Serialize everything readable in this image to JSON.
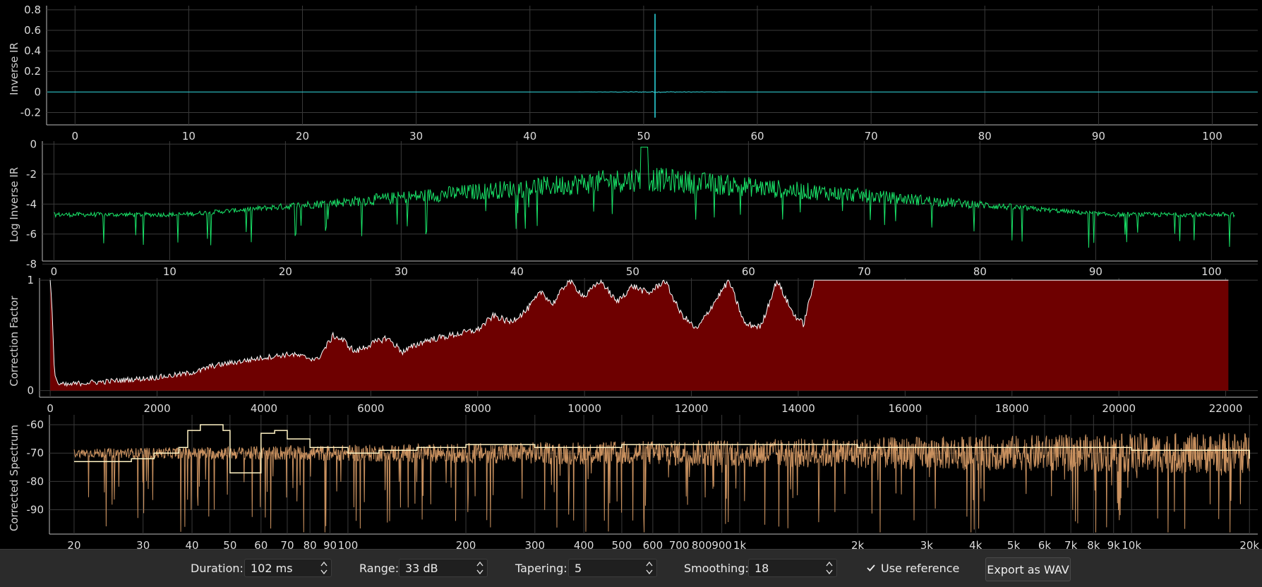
{
  "chart_data": [
    {
      "type": "line",
      "title": "",
      "ylabel": "Inverse IR",
      "xlabel": "",
      "xlim": [
        -2.5,
        104
      ],
      "ylim": [
        -0.32,
        0.84
      ],
      "xticks": [
        0,
        10,
        20,
        30,
        40,
        50,
        60,
        70,
        80,
        90,
        100
      ],
      "yticks": [
        -0.2,
        0,
        0.2,
        0.4,
        0.6,
        0.8
      ],
      "ytick_labels": [
        "-0.2",
        "0",
        "0.2",
        "0.4",
        "0.6",
        "0.8"
      ],
      "series": [
        {
          "name": "inverse-ir",
          "peak_x": 51,
          "peak_value": 0.76,
          "min_value": -0.25,
          "color": "#2ad0d6"
        }
      ],
      "grid": true
    },
    {
      "type": "line",
      "title": "",
      "ylabel": "Log Inverse IR",
      "xlabel": "",
      "xlim": [
        -1,
        104
      ],
      "ylim": [
        -7.8,
        0.2
      ],
      "xticks": [
        0,
        10,
        20,
        30,
        40,
        50,
        60,
        70,
        80,
        90,
        100
      ],
      "yticks": [
        0,
        -2,
        -4,
        -6,
        -8
      ],
      "ytick_labels": [
        "0",
        "-2",
        "-4",
        "-6",
        "-8"
      ],
      "series": [
        {
          "name": "log-inverse-ir",
          "baseline": -4.7,
          "peak_x": 51,
          "peak_value": -0.2,
          "color": "#19e368"
        }
      ],
      "grid": true
    },
    {
      "type": "area",
      "title": "",
      "ylabel": "Correction Factor",
      "xlabel": "",
      "xlim": [
        -200,
        22600
      ],
      "ylim": [
        -0.06,
        1.02
      ],
      "xticks": [
        0,
        2000,
        4000,
        6000,
        8000,
        10000,
        12000,
        14000,
        16000,
        18000,
        20000,
        22000
      ],
      "yticks": [
        0,
        1
      ],
      "ytick_labels": [
        "0",
        "1"
      ],
      "series": [
        {
          "name": "correction-factor",
          "fill": "#6e0000",
          "line": "#ffffff",
          "x": [
            0,
            30,
            80,
            150,
            300,
            600,
            1000,
            1500,
            2000,
            2500,
            2800,
            3000,
            3500,
            4000,
            4500,
            5000,
            5300,
            5500,
            5700,
            6000,
            6300,
            6600,
            7000,
            7500,
            8000,
            8300,
            8600,
            8900,
            9200,
            9400,
            9700,
            10000,
            10300,
            10600,
            10900,
            11200,
            11500,
            11800,
            12100,
            12400,
            12700,
            13000,
            13300,
            13600,
            13900,
            14100,
            14300,
            16000,
            18000,
            20000,
            22000
          ],
          "values": [
            1.0,
            0.8,
            0.15,
            0.06,
            0.05,
            0.07,
            0.08,
            0.1,
            0.12,
            0.15,
            0.18,
            0.22,
            0.26,
            0.3,
            0.33,
            0.28,
            0.5,
            0.45,
            0.35,
            0.42,
            0.48,
            0.35,
            0.45,
            0.5,
            0.55,
            0.68,
            0.62,
            0.72,
            0.9,
            0.78,
            1.0,
            0.85,
            1.0,
            0.8,
            0.95,
            0.88,
            1.0,
            0.7,
            0.55,
            0.78,
            1.0,
            0.6,
            0.58,
            1.0,
            0.7,
            0.6,
            1.0,
            1.0,
            1.0,
            1.0,
            1.0
          ]
        }
      ],
      "grid": true
    },
    {
      "type": "line",
      "title": "",
      "ylabel": "Corrected Spectrum",
      "xlabel": "",
      "xscale": "log",
      "xlim": [
        17.3,
        21000
      ],
      "ylim": [
        -98.6,
        -56.5
      ],
      "xticks": [
        20,
        30,
        40,
        50,
        60,
        70,
        80,
        90,
        100,
        200,
        300,
        400,
        500,
        600,
        700,
        800,
        900,
        1000,
        2000,
        3000,
        4000,
        5000,
        6000,
        7000,
        8000,
        9000,
        10000,
        20000
      ],
      "xtick_labels": [
        "20",
        "30",
        "40",
        "50",
        "60",
        "70",
        "80",
        "90",
        "100",
        "200",
        "300",
        "400",
        "500",
        "600",
        "700",
        "800",
        "900",
        "1k",
        "2k",
        "3k",
        "4k",
        "5k",
        "6k",
        "7k",
        "8k",
        "9k",
        "10k",
        "20k"
      ],
      "yticks": [
        -60,
        -70,
        -80,
        -90
      ],
      "ytick_labels": [
        "-60",
        "-70",
        "-80",
        "-90"
      ],
      "series": [
        {
          "name": "spectrum-raw",
          "color": "#c9915f",
          "baseline": -70
        },
        {
          "name": "spectrum-smoothed",
          "color": "#fff3c4",
          "x": [
            20,
            23,
            28,
            32,
            37,
            39,
            42,
            45,
            48,
            50,
            53,
            57,
            60,
            65,
            70,
            80,
            90,
            100,
            120,
            150,
            200,
            300,
            500,
            1000,
            2000,
            5000,
            10000,
            20000
          ],
          "values": [
            -73,
            -73,
            -72,
            -70,
            -68,
            -62,
            -60,
            -60,
            -62,
            -77,
            -77,
            -77,
            -63,
            -62,
            -65,
            -68,
            -68,
            -70,
            -69,
            -68,
            -67,
            -68,
            -67,
            -67,
            -68,
            -68,
            -69,
            -72
          ]
        }
      ],
      "grid": true
    }
  ],
  "controls": {
    "duration": {
      "label": "Duration:",
      "value": "102 ms"
    },
    "range": {
      "label": "Range:",
      "value": "33 dB"
    },
    "tapering": {
      "label": "Tapering:",
      "value": "5"
    },
    "smoothing": {
      "label": "Smoothing:",
      "value": "18"
    },
    "use_reference": {
      "label": "Use reference",
      "checked": true
    },
    "export_label": "Export as WAV"
  }
}
